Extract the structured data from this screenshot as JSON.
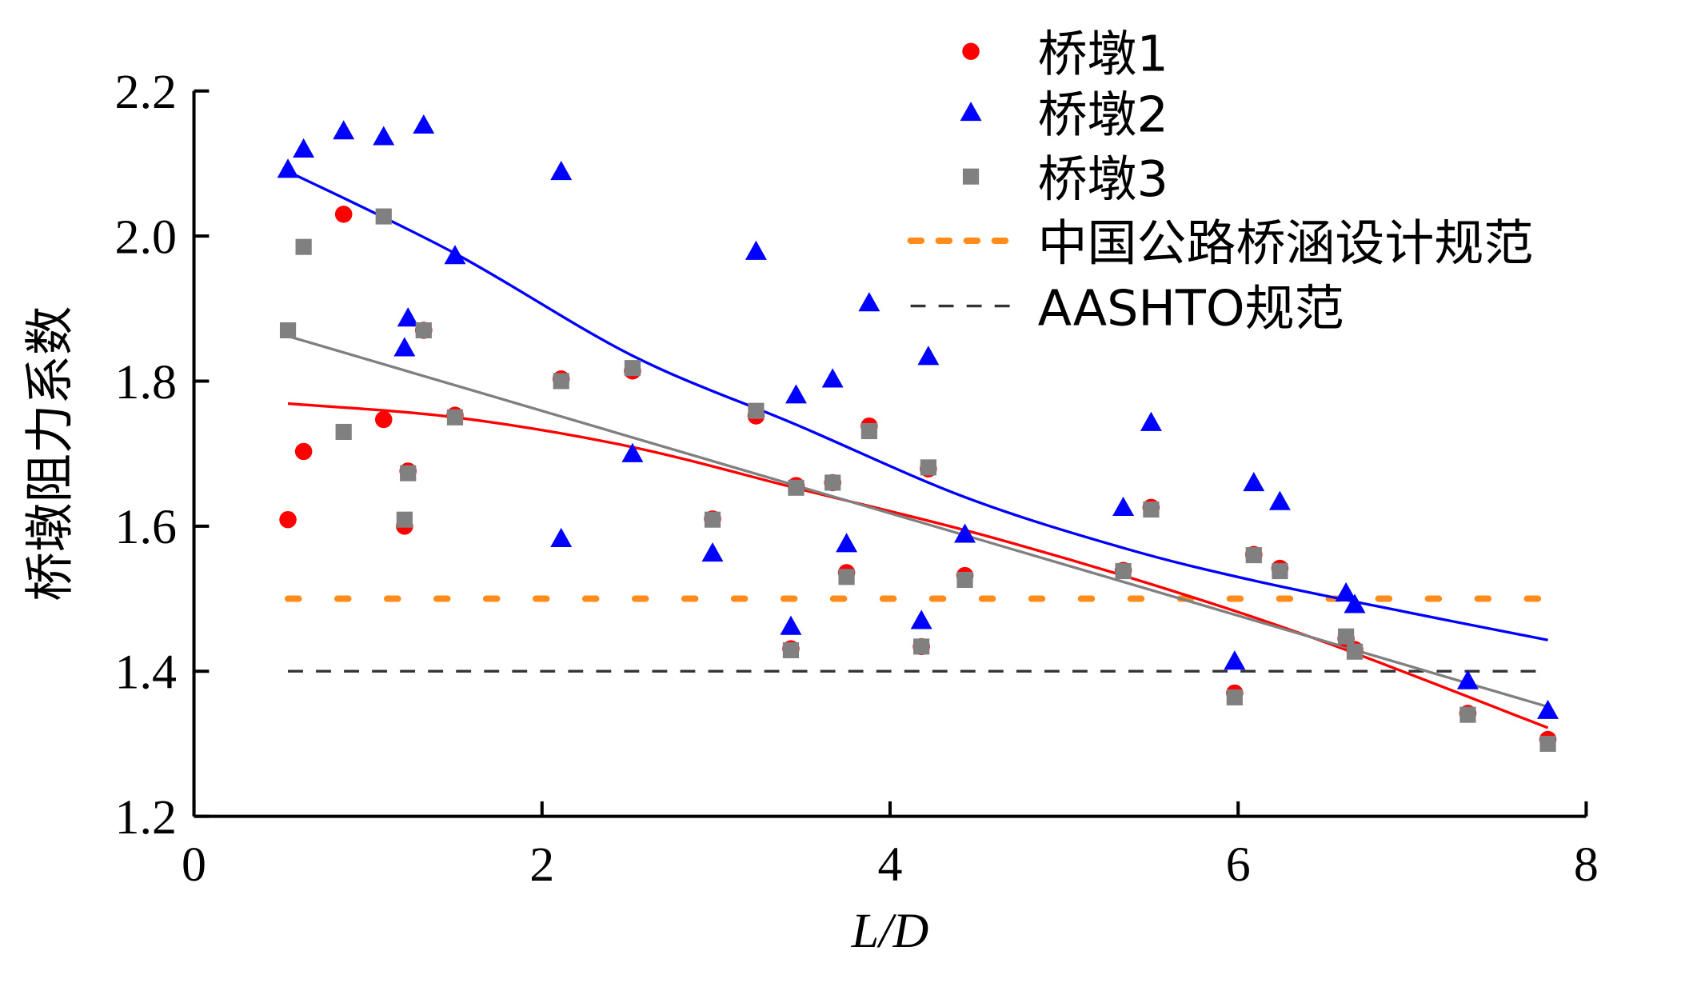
{
  "chart_data": {
    "type": "scatter",
    "xlabel": "L/D",
    "ylabel": "桥墩阻力系数",
    "xlim": [
      0,
      8
    ],
    "ylim": [
      1.2,
      2.2
    ],
    "xticks": [
      "0",
      "2",
      "4",
      "6",
      "8"
    ],
    "yticks": [
      "1.2",
      "1.4",
      "1.6",
      "1.8",
      "2.0",
      "2.2"
    ],
    "legend_position": "top-right",
    "x": [
      0.54,
      0.63,
      0.86,
      1.09,
      1.21,
      1.23,
      1.32,
      1.5,
      2.11,
      2.52,
      2.98,
      3.23,
      3.46,
      3.43,
      3.67,
      3.75,
      3.88,
      4.18,
      4.22,
      4.43,
      5.34,
      5.5,
      5.98,
      6.09,
      6.24,
      6.62,
      6.67,
      7.32,
      7.78
    ],
    "series": [
      {
        "name": "桥墩1",
        "marker": "circle",
        "color": "#ff0000",
        "values": [
          1.609,
          1.703,
          2.03,
          1.747,
          1.6,
          1.676,
          1.87,
          1.753,
          1.803,
          1.814,
          1.61,
          1.752,
          1.656,
          1.431,
          1.66,
          1.536,
          1.738,
          1.434,
          1.679,
          1.532,
          1.539,
          1.626,
          1.37,
          1.561,
          1.542,
          1.445,
          1.43,
          1.342,
          1.306
        ]
      },
      {
        "name": "桥墩2",
        "marker": "triangle",
        "color": "#0000ff",
        "values": [
          2.092,
          2.12,
          2.145,
          2.137,
          1.846,
          1.887,
          2.153,
          1.973,
          2.089,
          1.7,
          1.563,
          1.979,
          1.781,
          1.462,
          1.803,
          1.576,
          1.908,
          1.47,
          1.834,
          1.589,
          1.626,
          1.743,
          1.414,
          1.66,
          1.634,
          1.508,
          1.492,
          1.387,
          1.346
        ],
        "extra_points": [
          [
            2.11,
            1.583
          ]
        ]
      },
      {
        "name": "桥墩3",
        "marker": "square",
        "color": "#808080",
        "values": [
          1.87,
          1.985,
          1.73,
          2.027,
          1.609,
          1.673,
          1.87,
          1.75,
          1.8,
          1.818,
          1.609,
          1.759,
          1.653,
          1.429,
          1.66,
          1.53,
          1.731,
          1.434,
          1.681,
          1.526,
          1.538,
          1.623,
          1.364,
          1.56,
          1.538,
          1.448,
          1.427,
          1.34,
          1.3
        ]
      }
    ],
    "fits": [
      {
        "name": "fit-1",
        "color": "#ff0000",
        "x": [
          0.54,
          1.5,
          2.5,
          3.5,
          4.5,
          5.5,
          6.5,
          7.78
        ],
        "y": [
          1.769,
          1.75,
          1.71,
          1.65,
          1.59,
          1.52,
          1.44,
          1.322
        ]
      },
      {
        "name": "fit-2",
        "color": "#0000ff",
        "x": [
          0.54,
          1.5,
          2.52,
          3.46,
          4.43,
          5.34,
          6.09,
          7.0,
          7.78
        ],
        "y": [
          2.089,
          1.976,
          1.835,
          1.74,
          1.64,
          1.57,
          1.525,
          1.48,
          1.443
        ]
      },
      {
        "name": "fit-3",
        "color": "#808080",
        "x": [
          0.54,
          7.78
        ],
        "y": [
          1.862,
          1.351
        ]
      }
    ],
    "reference_lines": [
      {
        "name": "中国公路桥涵设计规范",
        "y": 1.5,
        "color": "#ff8c1a",
        "style": "dotted"
      },
      {
        "name": "AASHTO规范",
        "y": 1.4,
        "color": "#333333",
        "style": "dashed"
      }
    ],
    "ref_xrange": [
      0.54,
      7.78
    ]
  }
}
